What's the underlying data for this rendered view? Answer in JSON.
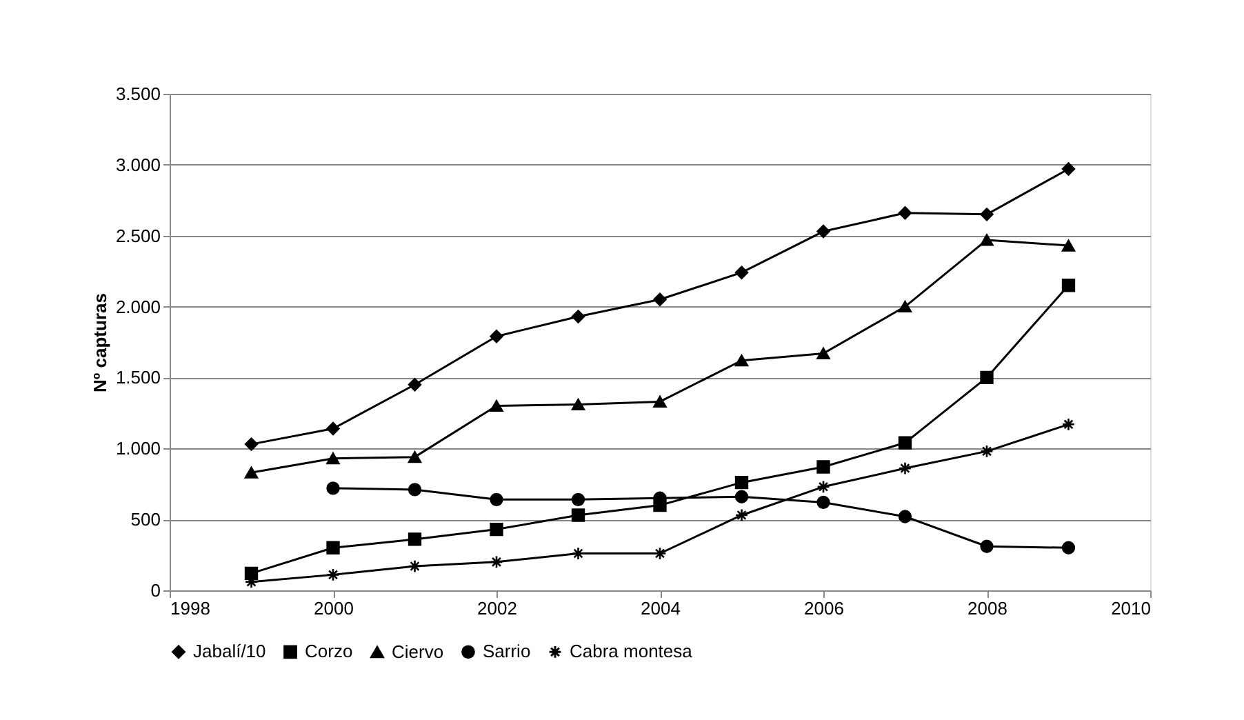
{
  "chart_data": {
    "type": "line",
    "ylabel": "Nº capturas",
    "x": [
      1999,
      2000,
      2001,
      2002,
      2003,
      2004,
      2005,
      2006,
      2007,
      2008,
      2009
    ],
    "xlim": [
      1998,
      2010
    ],
    "xticks": [
      1998,
      2000,
      2002,
      2004,
      2006,
      2008,
      2010
    ],
    "ylim": [
      0,
      3500
    ],
    "yticks": [
      0,
      500,
      {
        "value": 1000,
        "label": "1.000"
      },
      {
        "value": 1500,
        "label": "1.500"
      },
      {
        "value": 2000,
        "label": "2.000"
      },
      {
        "value": 2500,
        "label": "2.500"
      },
      {
        "value": 3000,
        "label": "3.000"
      },
      {
        "value": 3500,
        "label": "3.500"
      }
    ],
    "grid": "y",
    "legend": "bottom",
    "line_style": "solid",
    "series": [
      {
        "name": "Jabalí/10",
        "color": "#000000",
        "marker": "diamond",
        "values": [
          1030,
          1140,
          1450,
          1790,
          1930,
          2050,
          2240,
          2530,
          2660,
          2650,
          2970
        ]
      },
      {
        "name": "Corzo",
        "color": "#000000",
        "marker": "square",
        "values": [
          120,
          300,
          360,
          430,
          530,
          600,
          760,
          870,
          1040,
          1500,
          2150
        ]
      },
      {
        "name": "Ciervo",
        "color": "#000000",
        "marker": "triangle",
        "values": [
          830,
          930,
          940,
          1300,
          1310,
          1330,
          1620,
          1670,
          2000,
          2470,
          2430
        ]
      },
      {
        "name": "Sarrio",
        "color": "#000000",
        "marker": "circle",
        "values": [
          null,
          720,
          710,
          640,
          640,
          650,
          660,
          620,
          520,
          310,
          300
        ]
      },
      {
        "name": "Cabra montesa",
        "color": "#000000",
        "marker": "cross",
        "values": [
          60,
          110,
          170,
          200,
          260,
          260,
          530,
          730,
          860,
          980,
          1170
        ]
      }
    ]
  }
}
